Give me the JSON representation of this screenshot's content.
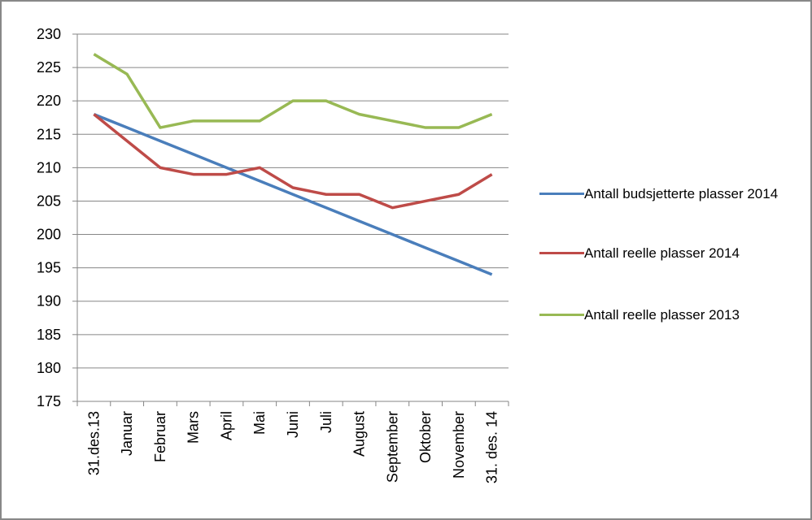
{
  "chart_data": {
    "type": "line",
    "categories": [
      "31.des.13",
      "Januar",
      "Februar",
      "Mars",
      "April",
      "Mai",
      "Juni",
      "Juli",
      "August",
      "September",
      "Oktober",
      "November",
      "31. des. 14"
    ],
    "series": [
      {
        "name": "Antall budsjetterte plasser 2014",
        "color": "#4a7ebb",
        "values": [
          218,
          216,
          214,
          212,
          210,
          208,
          206,
          204,
          202,
          200,
          198,
          196,
          194
        ]
      },
      {
        "name": "Antall reelle plasser 2014",
        "color": "#be4b48",
        "values": [
          218,
          214,
          210,
          209,
          209,
          210,
          207,
          206,
          206,
          204,
          205,
          206,
          209
        ]
      },
      {
        "name": "Antall reelle plasser 2013",
        "color": "#98b954",
        "values": [
          227,
          224,
          216,
          217,
          217,
          217,
          220,
          220,
          218,
          217,
          216,
          216,
          218
        ]
      }
    ],
    "ylim": [
      175,
      230
    ],
    "yticks": [
      175,
      180,
      185,
      190,
      195,
      200,
      205,
      210,
      215,
      220,
      225,
      230
    ],
    "grid": true
  }
}
